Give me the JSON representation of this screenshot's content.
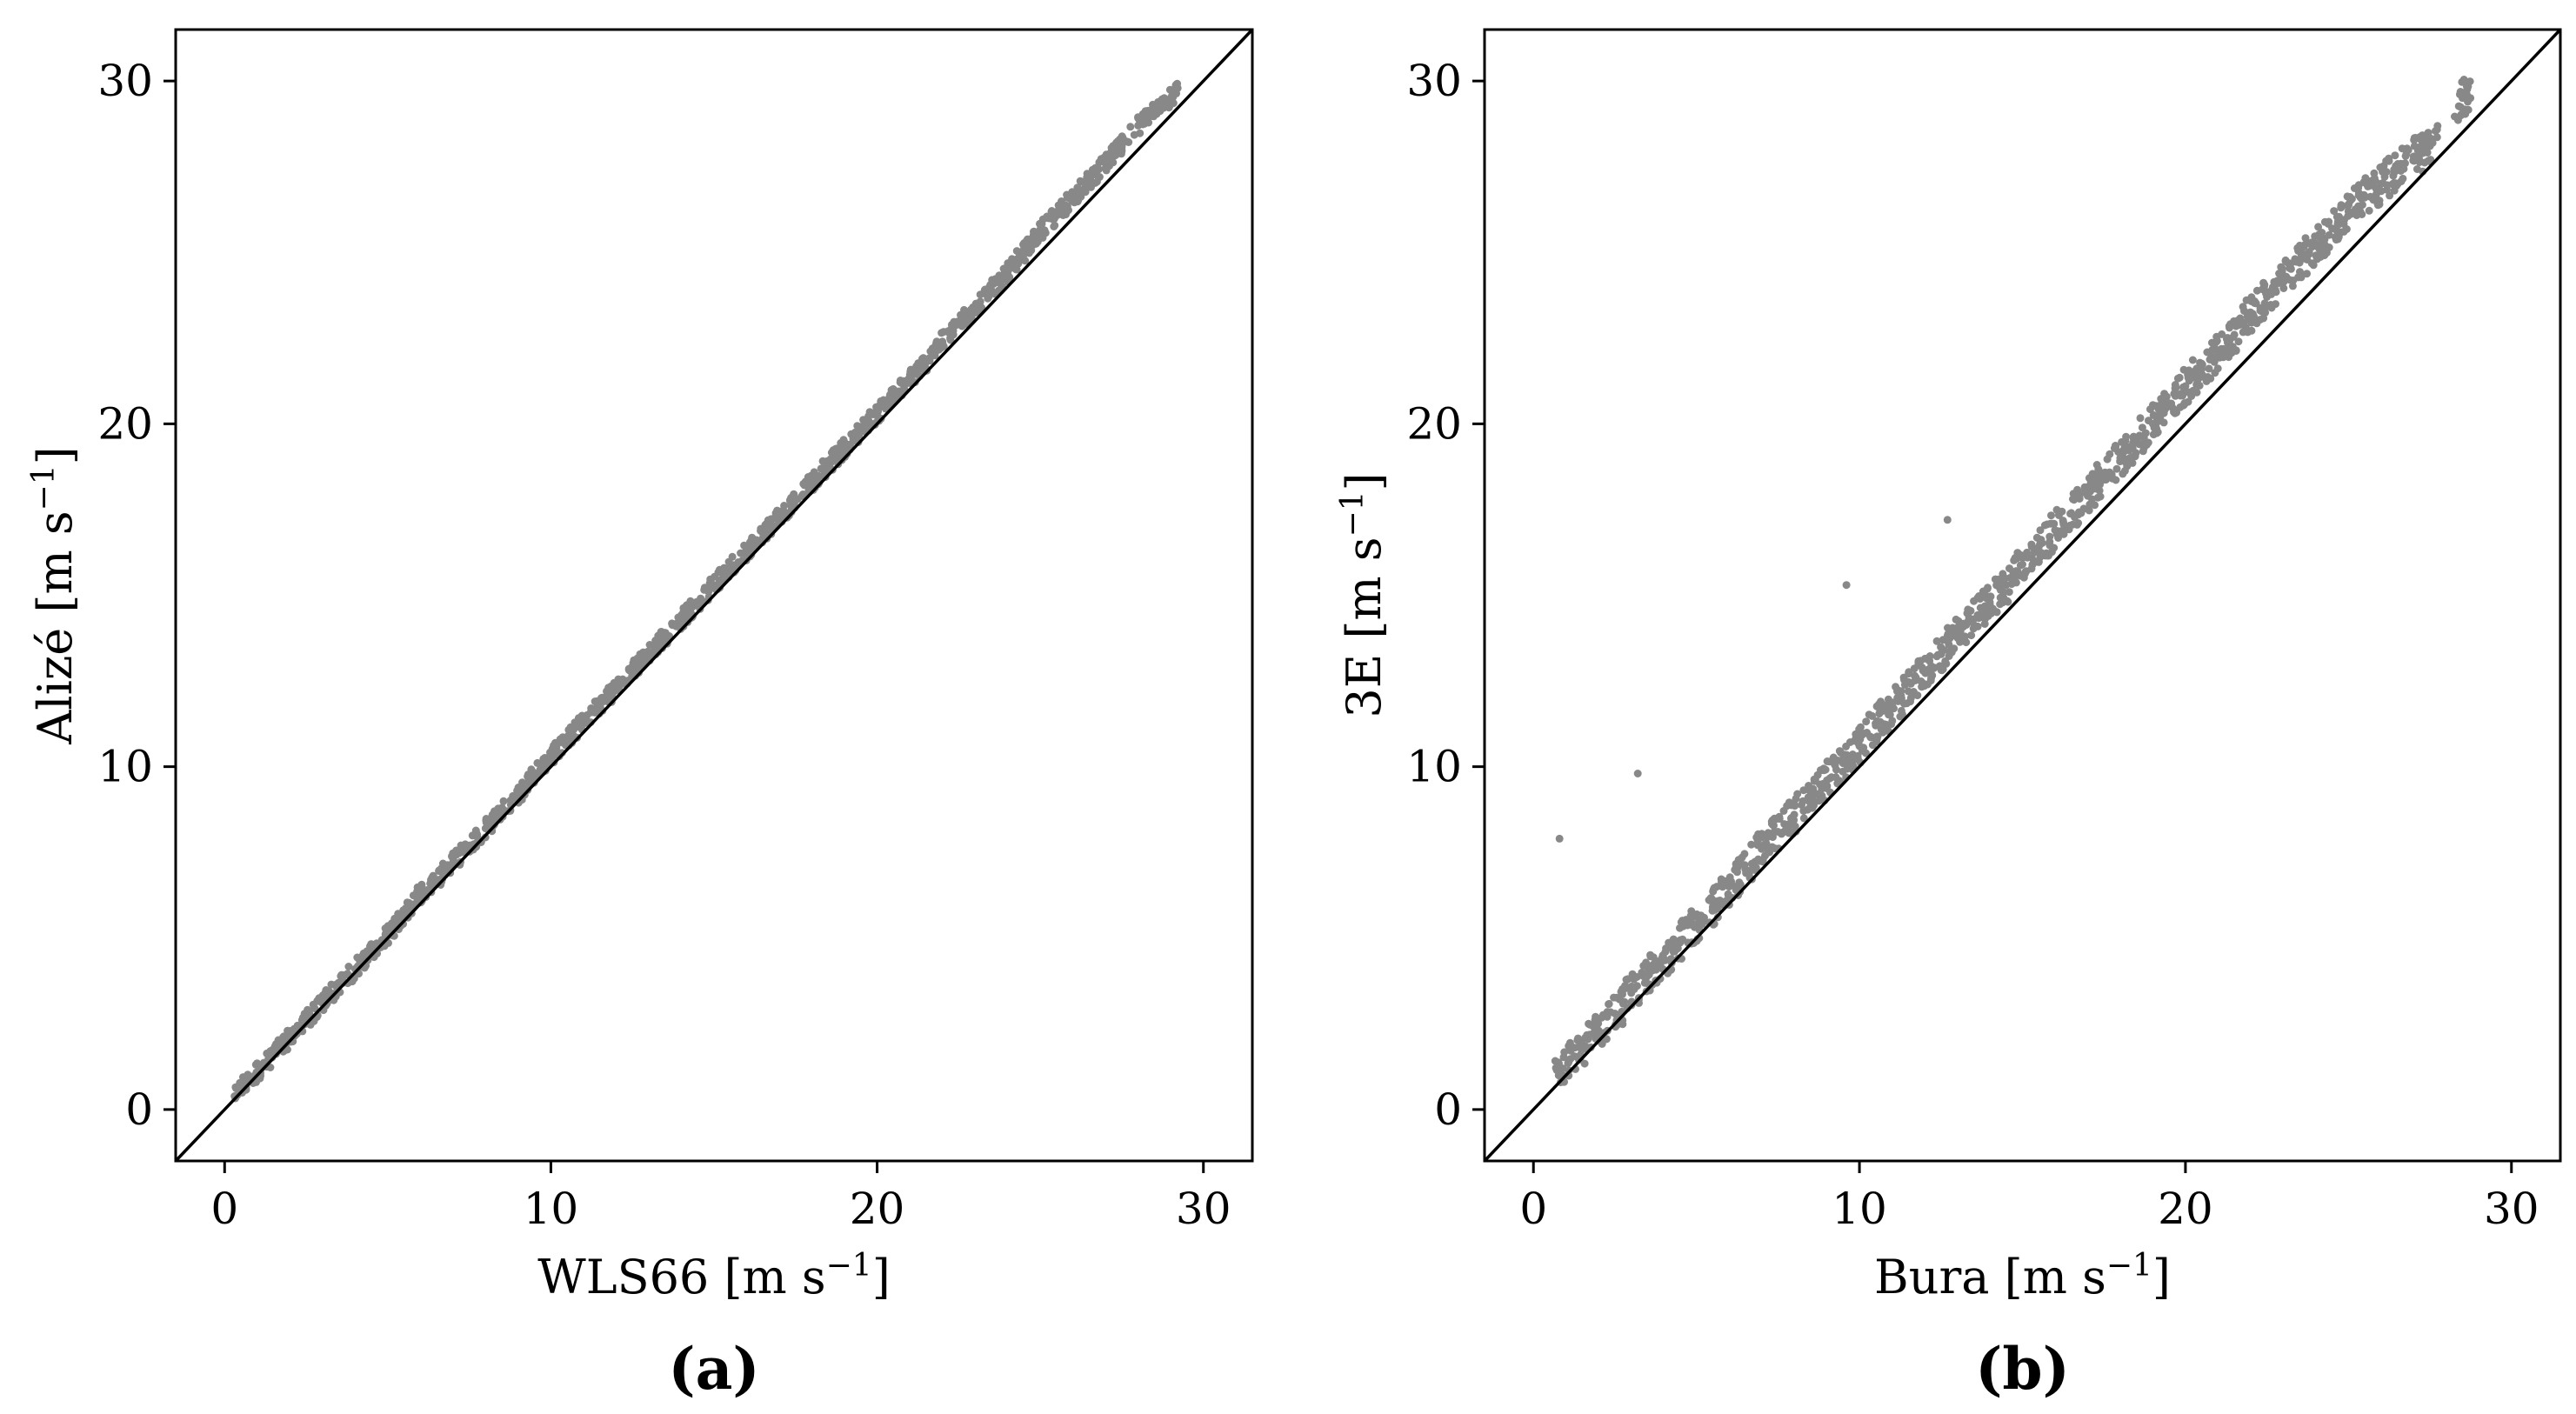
{
  "colors": {
    "points": "#888888",
    "reference_line": "#000000",
    "frame": "#000000"
  },
  "chart_data": [
    {
      "type": "scatter",
      "panel_label": "(a)",
      "title": "",
      "xlabel": "WLS66 [m s",
      "ylabel": "Alizé [m s",
      "unit_exponent": "−1",
      "unit_close": "]",
      "xlim": [
        -1.5,
        31.5
      ],
      "ylim": [
        -1.5,
        31.5
      ],
      "xticks": [
        0,
        10,
        20,
        30
      ],
      "yticks": [
        0,
        10,
        20,
        30
      ],
      "xtick_labels": [
        "0",
        "10",
        "20",
        "30"
      ],
      "ytick_labels": [
        "0",
        "10",
        "20",
        "30"
      ],
      "grid": false,
      "reference_line": "y = x",
      "series": [
        {
          "x": [
            0.5,
            1.0,
            1.5,
            2.0,
            2.5,
            3.0,
            3.5,
            4.0,
            4.5,
            5.0,
            5.5,
            6.0,
            6.5,
            7.0,
            7.5,
            8.0,
            8.5,
            9.0,
            9.5,
            10.0,
            10.5,
            11.0,
            11.5,
            12.0,
            12.5,
            13.0,
            13.5,
            14.0,
            14.5,
            15.0,
            15.5,
            16.0,
            16.5,
            17.0,
            17.5,
            18.0,
            18.5,
            19.0,
            19.5,
            20.0,
            20.5,
            21.0,
            21.5,
            22.0,
            22.5,
            23.0,
            23.5,
            24.0,
            24.5,
            25.0,
            25.5,
            26.0,
            26.5,
            27.0,
            27.5,
            28.0,
            28.5,
            29.0
          ],
          "y": [
            0.6,
            1.1,
            1.6,
            2.1,
            2.6,
            3.1,
            3.6,
            4.1,
            4.6,
            5.1,
            5.7,
            6.3,
            6.7,
            7.2,
            7.7,
            8.2,
            8.7,
            9.2,
            9.8,
            10.3,
            10.8,
            11.3,
            11.8,
            12.3,
            12.8,
            13.3,
            13.8,
            14.3,
            14.8,
            15.3,
            15.8,
            16.3,
            16.8,
            17.3,
            17.8,
            18.3,
            18.8,
            19.3,
            19.8,
            20.3,
            20.8,
            21.3,
            21.8,
            22.4,
            22.9,
            23.4,
            23.9,
            24.4,
            25.0,
            25.6,
            26.1,
            26.6,
            27.1,
            27.6,
            28.1,
            28.7,
            29.2,
            29.5
          ]
        }
      ]
    },
    {
      "type": "scatter",
      "panel_label": "(b)",
      "title": "",
      "xlabel": "Bura [m s",
      "ylabel": "3E [m s",
      "unit_exponent": "−1",
      "unit_close": "]",
      "xlim": [
        -1.5,
        31.5
      ],
      "ylim": [
        -1.5,
        31.5
      ],
      "xticks": [
        0,
        10,
        20,
        30
      ],
      "yticks": [
        0,
        10,
        20,
        30
      ],
      "xtick_labels": [
        "0",
        "10",
        "20",
        "30"
      ],
      "ytick_labels": [
        "0",
        "10",
        "20",
        "30"
      ],
      "grid": false,
      "reference_line": "y = x",
      "series": [
        {
          "x": [
            0.8,
            3.2,
            9.6,
            12.7,
            0.9,
            1.5,
            2.0,
            2.5,
            3.0,
            3.5,
            4.0,
            4.5,
            5.0,
            5.5,
            6.0,
            6.5,
            7.0,
            7.5,
            8.0,
            8.5,
            9.0,
            9.5,
            10.0,
            10.5,
            11.0,
            11.5,
            12.0,
            12.5,
            13.0,
            13.5,
            14.0,
            14.5,
            15.0,
            15.5,
            16.0,
            16.5,
            17.0,
            17.5,
            18.0,
            18.5,
            19.0,
            19.5,
            20.0,
            20.5,
            21.0,
            21.5,
            22.0,
            22.5,
            23.0,
            23.5,
            24.0,
            24.5,
            25.0,
            25.5,
            26.0,
            26.5,
            27.0,
            27.5,
            28.5
          ],
          "y": [
            7.9,
            9.8,
            15.3,
            17.2,
            1.2,
            1.8,
            2.3,
            2.8,
            3.4,
            3.9,
            4.4,
            4.9,
            5.4,
            5.9,
            6.5,
            7.0,
            7.6,
            8.1,
            8.6,
            9.1,
            9.6,
            10.1,
            10.6,
            11.2,
            11.7,
            12.2,
            12.8,
            13.3,
            13.8,
            14.3,
            14.8,
            15.3,
            15.9,
            16.4,
            16.9,
            17.4,
            17.9,
            18.5,
            19.0,
            19.5,
            20.0,
            20.6,
            21.1,
            21.6,
            22.1,
            22.6,
            23.2,
            23.7,
            24.2,
            24.7,
            25.2,
            25.7,
            26.2,
            26.6,
            27.0,
            27.4,
            27.8,
            28.1,
            29.5
          ]
        }
      ]
    }
  ]
}
